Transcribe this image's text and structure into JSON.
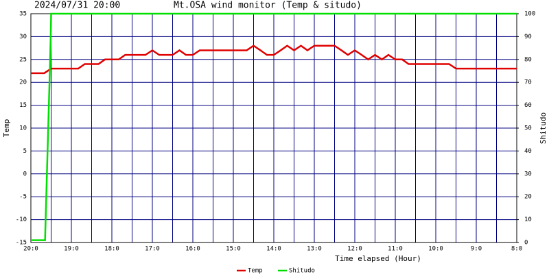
{
  "chart_data": {
    "type": "line",
    "title": "2024/07/31 20:00",
    "subtitle": "Mt.OSA wind monitor (Temp & situdo)",
    "x_label": "Time elapsed (Hour)",
    "y_label": "Temp",
    "y2_label": "Shitudo",
    "xlim": [
      0,
      12
    ],
    "xticks": [
      {
        "value": 0,
        "label": "20:0"
      },
      {
        "value": 1,
        "label": "19:0"
      },
      {
        "value": 2,
        "label": "18:0"
      },
      {
        "value": 3,
        "label": "17:0"
      },
      {
        "value": 4,
        "label": "16:0"
      },
      {
        "value": 5,
        "label": "15:0"
      },
      {
        "value": 6,
        "label": "14:0"
      },
      {
        "value": 7,
        "label": "13:0"
      },
      {
        "value": 8,
        "label": "12:0"
      },
      {
        "value": 9,
        "label": "11:0"
      },
      {
        "value": 10,
        "label": "10:0"
      },
      {
        "value": 11,
        "label": "9:0"
      },
      {
        "value": 12,
        "label": "8:0"
      }
    ],
    "x_minor_ticks": [
      0.5,
      1.5,
      2.5,
      3.5,
      4.5,
      5.5,
      6.5,
      7.5,
      8.5,
      9.5,
      10.5,
      11.5
    ],
    "ylim": [
      -15,
      35
    ],
    "yticks": [
      -15,
      -10,
      -5,
      0,
      5,
      10,
      15,
      20,
      25,
      30,
      35
    ],
    "y2lim": [
      0,
      100
    ],
    "y2ticks": [
      0,
      10,
      20,
      30,
      40,
      50,
      60,
      70,
      80,
      90,
      100
    ],
    "grid": true,
    "grid_color": "#000080",
    "legend": "bottom",
    "series": [
      {
        "name": "Temp",
        "color": "#e00000",
        "x": [
          0,
          0.33,
          0.5,
          1.17,
          1.33,
          1.67,
          1.83,
          2.17,
          2.33,
          2.83,
          3.0,
          3.17,
          3.5,
          3.67,
          3.83,
          4.0,
          4.17,
          5.33,
          5.5,
          5.67,
          5.83,
          6.0,
          6.17,
          6.33,
          6.5,
          6.67,
          6.83,
          7.0,
          7.5,
          7.67,
          7.83,
          8.0,
          8.17,
          8.33,
          8.5,
          8.67,
          8.83,
          9.0,
          9.17,
          9.33,
          10.33,
          10.5,
          12
        ],
        "values": [
          22,
          22,
          23,
          23,
          24,
          24,
          25,
          25,
          26,
          26,
          27,
          26,
          26,
          27,
          26,
          26,
          27,
          27,
          28,
          27,
          26,
          26,
          27,
          28,
          27,
          28,
          27,
          28,
          28,
          27,
          26,
          27,
          26,
          25,
          26,
          25,
          26,
          25,
          25,
          24,
          24,
          23,
          23
        ]
      },
      {
        "name": "Shitudo",
        "color": "#00e000",
        "axis": "y2",
        "x": [
          0,
          0.35,
          0.46,
          0.49,
          0.5,
          12
        ],
        "values": [
          1,
          1,
          70,
          90,
          100,
          100
        ]
      }
    ]
  }
}
